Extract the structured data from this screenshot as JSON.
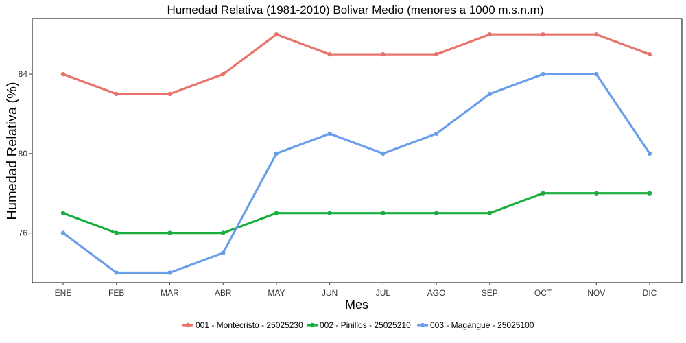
{
  "chart_data": {
    "type": "line",
    "title": "Humedad Relativa (1981-2010) Bolivar Medio (menores a 1000 m.s.n.m)",
    "xlabel": "Mes",
    "ylabel": "Humedad Relativa (%)",
    "categories": [
      "ENE",
      "FEB",
      "MAR",
      "ABR",
      "MAY",
      "JUN",
      "JUL",
      "AGO",
      "SEP",
      "OCT",
      "NOV",
      "DIC"
    ],
    "yticks": [
      76,
      80,
      84
    ],
    "ylim": [
      73.5,
      86.8
    ],
    "grid": false,
    "legend_position": "bottom",
    "series": [
      {
        "name": "001 - Montecristo - 25025230",
        "color": "#E8736B",
        "values": [
          84,
          83,
          83,
          84,
          86,
          85,
          85,
          85,
          86,
          86,
          86,
          85
        ]
      },
      {
        "name": "002 - Pinillos - 25025210",
        "color": "#19AE3D",
        "values": [
          77,
          76,
          76,
          76,
          77,
          77,
          77,
          77,
          77,
          78,
          78,
          78
        ]
      },
      {
        "name": "003 - Magangue - 25025100",
        "color": "#6A9DEA",
        "values": [
          76,
          74,
          74,
          75,
          80,
          81,
          80,
          81,
          83,
          84,
          84,
          80
        ]
      }
    ]
  }
}
